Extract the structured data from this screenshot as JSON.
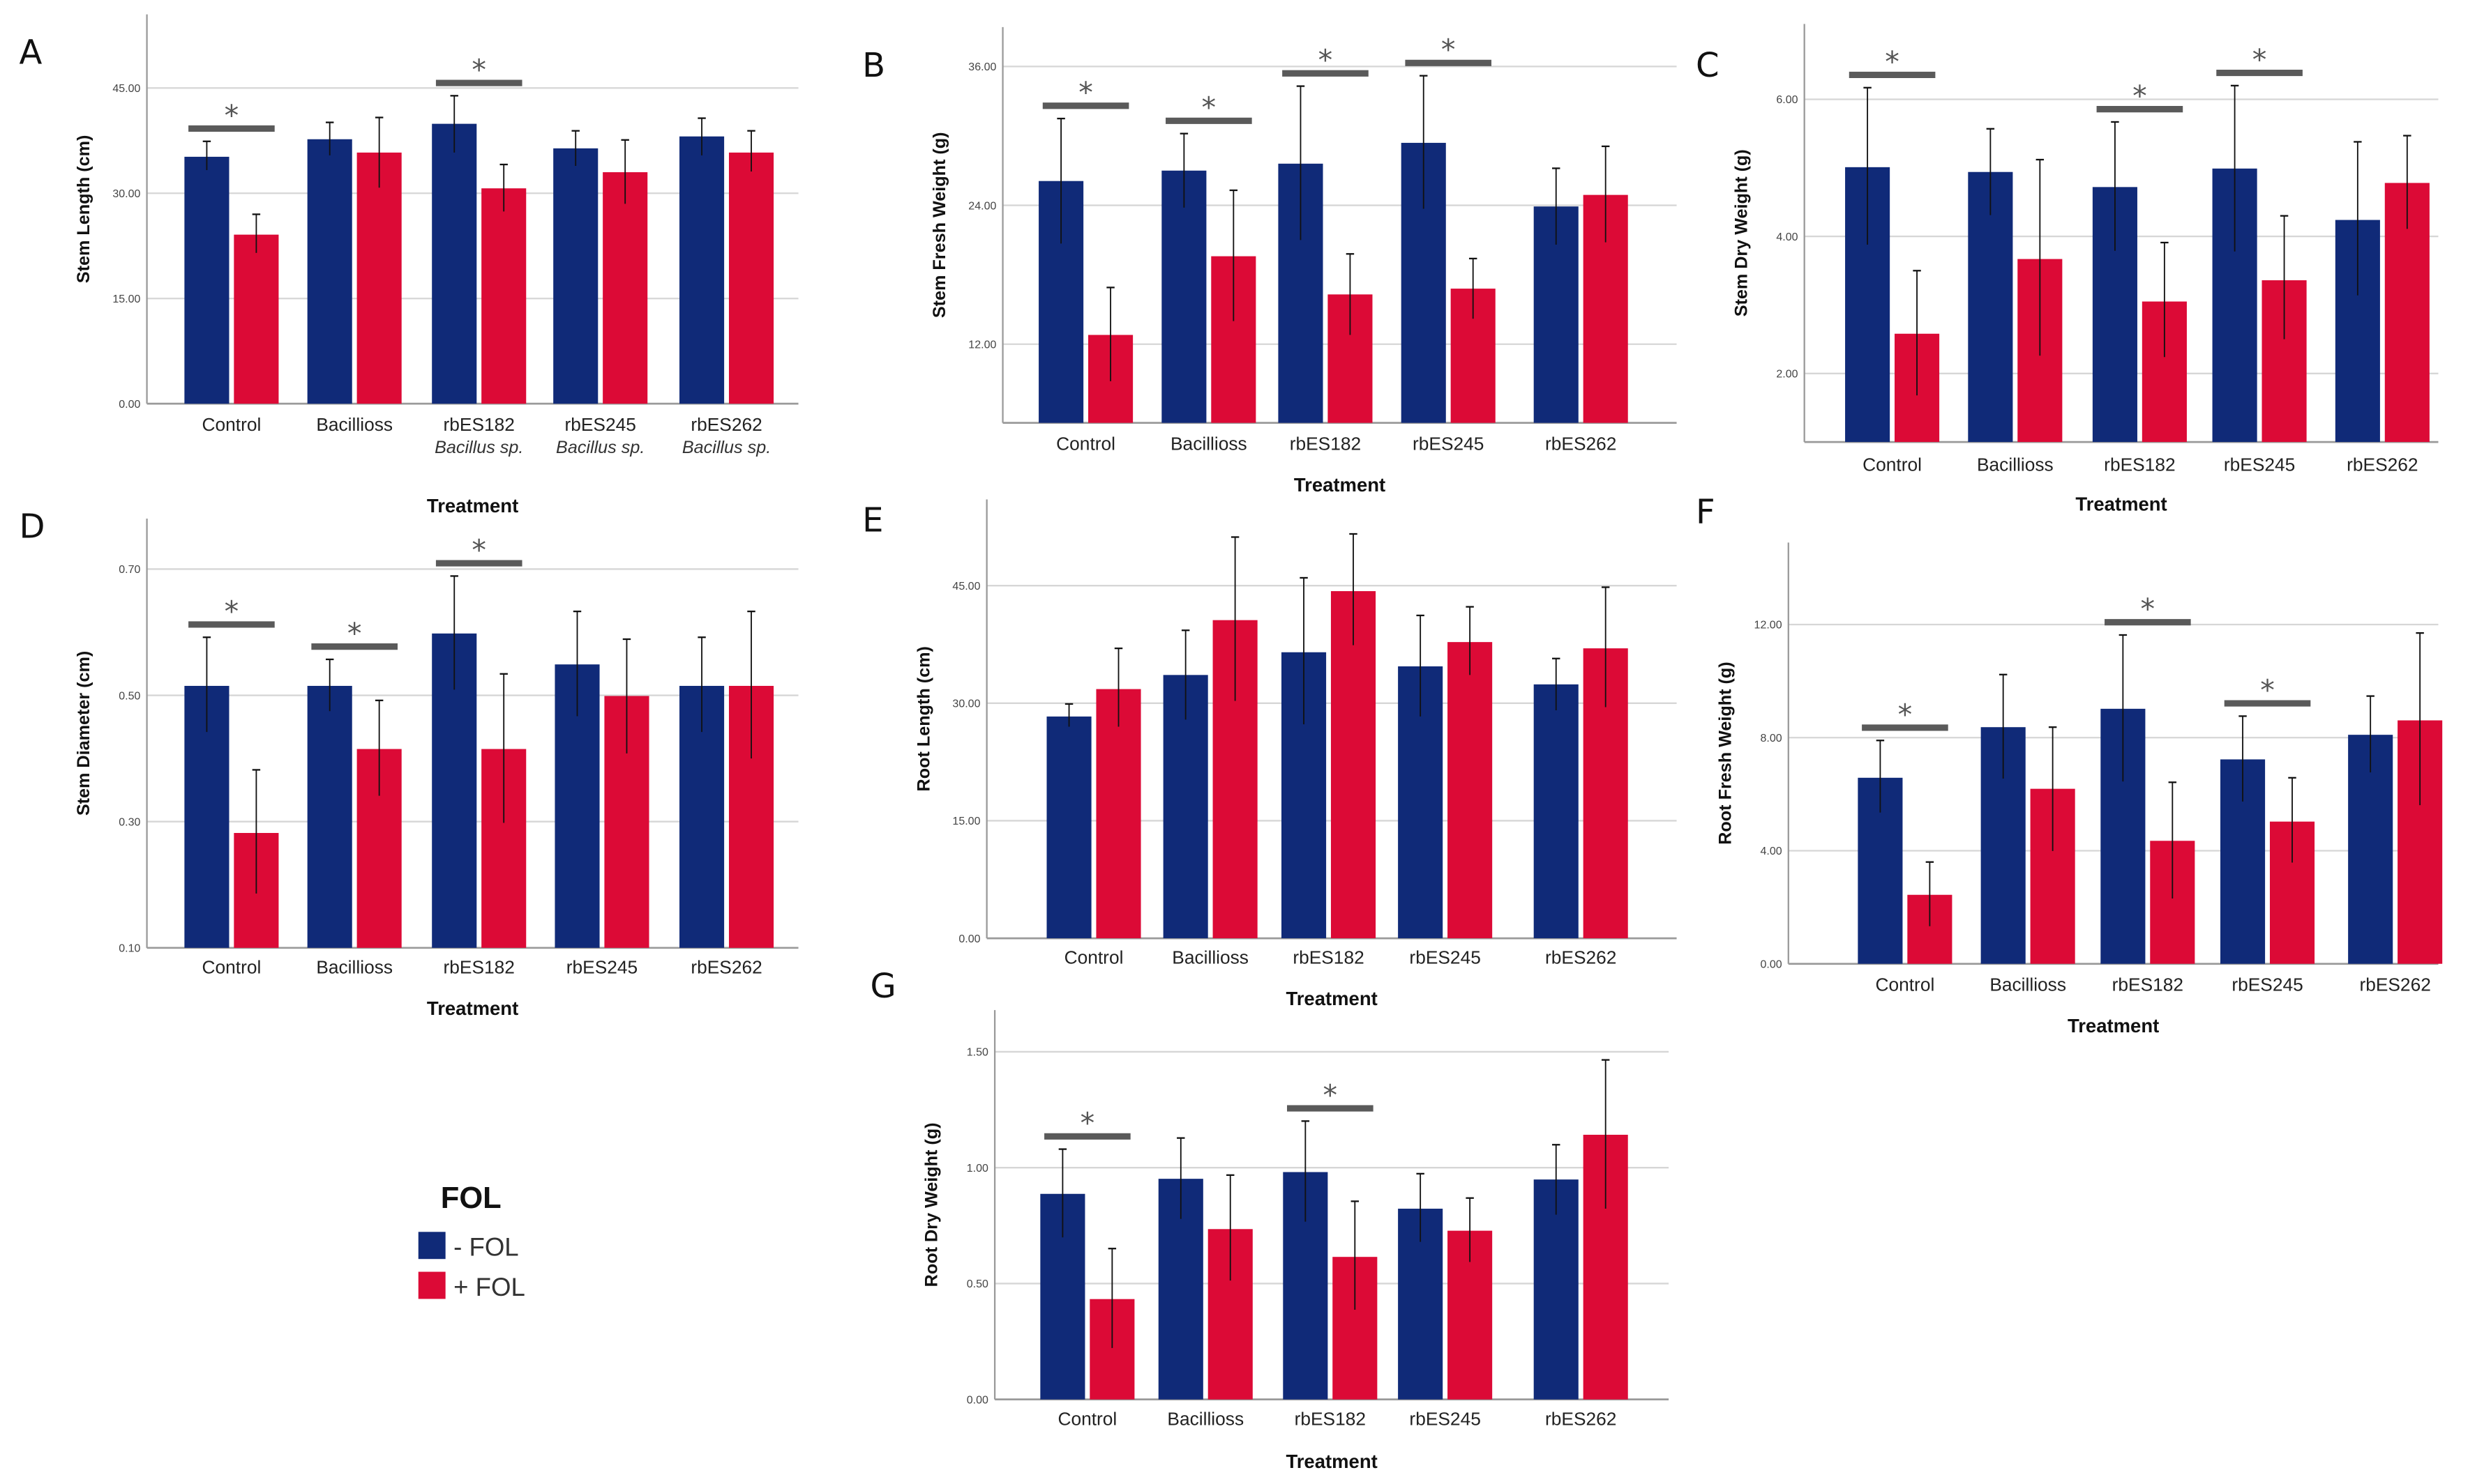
{
  "colors": {
    "minus_fol": "#102a78",
    "plus_fol": "#dc0a36",
    "grid": "#d6d6d6",
    "axis": "#9a9a9a",
    "sig_bar": "#5a5a5a"
  },
  "legend": {
    "title": "FOL",
    "items": [
      {
        "label": "- FOL",
        "series": "minus_fol"
      },
      {
        "label": "+ FOL",
        "series": "plus_fol"
      }
    ]
  },
  "chart_data": [
    {
      "type": "bar",
      "panel": "A",
      "ylabel": "Stem Length (cm)",
      "xlabel": "Treatment",
      "categories": [
        "Control",
        "Bacillioss",
        "rbES182",
        "rbES245",
        "rbES262"
      ],
      "category_sublabels": [
        "",
        "",
        "Bacillus sp.",
        "Bacillus sp.",
        "Bacillus sp."
      ],
      "yticks": [
        0,
        15,
        30,
        45
      ],
      "ytick_labels": [
        "0.00",
        "15.00",
        "30.00",
        "45.00"
      ],
      "ylim": [
        0,
        55.5
      ],
      "grid": true,
      "series": [
        {
          "name": "- FOL",
          "values": [
            35.2,
            37.7,
            39.9,
            36.4,
            38.1
          ],
          "err_low": [
            33.3,
            35.4,
            35.8,
            33.9,
            35.4
          ],
          "err_high": [
            37.4,
            40.1,
            43.9,
            38.9,
            40.7
          ]
        },
        {
          "name": "+ FOL",
          "values": [
            24.1,
            35.8,
            30.7,
            33.0,
            35.8
          ],
          "err_low": [
            21.5,
            30.8,
            27.4,
            28.5,
            33.1
          ],
          "err_high": [
            27.0,
            40.8,
            34.1,
            37.6,
            38.9
          ]
        }
      ],
      "significant": [
        "Control",
        "rbES182"
      ],
      "annotation": "*"
    },
    {
      "type": "bar",
      "panel": "B",
      "ylabel": "Stem Fresh Weight (g)",
      "xlabel": "Treatment",
      "categories": [
        "Control",
        "Bacillioss",
        "rbES182",
        "rbES245",
        "rbES262"
      ],
      "yticks": [
        12,
        24,
        36
      ],
      "ytick_labels": [
        "12.00",
        "24.00",
        "36.00"
      ],
      "ylim": [
        5.2,
        39.4
      ],
      "grid": true,
      "series": [
        {
          "name": "- FOL",
          "values": [
            26.1,
            27.0,
            27.6,
            29.4,
            23.9
          ],
          "err_low": [
            20.7,
            23.8,
            21.0,
            23.7,
            20.6
          ],
          "err_high": [
            31.5,
            30.2,
            34.3,
            35.2,
            27.2
          ]
        },
        {
          "name": "+ FOL",
          "values": [
            12.8,
            19.6,
            16.3,
            16.8,
            24.9
          ],
          "err_low": [
            8.8,
            14.0,
            12.8,
            14.2,
            20.8
          ],
          "err_high": [
            16.9,
            25.3,
            19.8,
            19.4,
            29.1
          ]
        }
      ],
      "significant": [
        "Control",
        "Bacillioss",
        "rbES182",
        "rbES245"
      ],
      "annotation": "*"
    },
    {
      "type": "bar",
      "panel": "C",
      "ylabel": "Stem Dry Weight (g)",
      "xlabel": "Treatment",
      "categories": [
        "Control",
        "Bacillioss",
        "rbES182",
        "rbES245",
        "rbES262"
      ],
      "yticks": [
        2,
        4,
        6
      ],
      "ytick_labels": [
        "2.00",
        "4.00",
        "6.00"
      ],
      "ylim": [
        1.0,
        7.1
      ],
      "grid": true,
      "series": [
        {
          "name": "- FOL",
          "values": [
            5.01,
            4.94,
            4.72,
            4.99,
            4.24
          ],
          "err_low": [
            3.88,
            4.31,
            3.79,
            3.78,
            3.14
          ],
          "err_high": [
            6.17,
            5.57,
            5.67,
            6.2,
            5.38
          ]
        },
        {
          "name": "+ FOL",
          "values": [
            2.58,
            3.67,
            3.05,
            3.36,
            4.78
          ],
          "err_low": [
            1.68,
            2.26,
            2.24,
            2.5,
            4.11
          ],
          "err_high": [
            3.5,
            5.12,
            3.91,
            4.3,
            5.47
          ]
        }
      ],
      "significant": [
        "Control",
        "rbES182",
        "rbES245"
      ],
      "annotation": "*"
    },
    {
      "type": "bar",
      "panel": "D",
      "ylabel": "Stem Diameter (cm)",
      "xlabel": "Treatment",
      "categories": [
        "Control",
        "Bacillioss",
        "rbES182",
        "rbES245",
        "rbES262"
      ],
      "yticks": [
        0.1,
        0.3,
        0.5,
        0.7
      ],
      "ytick_labels": [
        "0.10",
        "0.30",
        "0.50",
        "0.70"
      ],
      "ylim": [
        0.1,
        0.78
      ],
      "grid": true,
      "series": [
        {
          "name": "- FOL",
          "values": [
            0.515,
            0.515,
            0.598,
            0.549,
            0.515
          ],
          "err_low": [
            0.442,
            0.475,
            0.509,
            0.467,
            0.442
          ],
          "err_high": [
            0.592,
            0.557,
            0.689,
            0.633,
            0.592
          ]
        },
        {
          "name": "+ FOL",
          "values": [
            0.282,
            0.415,
            0.415,
            0.499,
            0.515
          ],
          "err_low": [
            0.186,
            0.341,
            0.298,
            0.408,
            0.4
          ],
          "err_high": [
            0.382,
            0.492,
            0.534,
            0.589,
            0.633
          ]
        }
      ],
      "significant": [
        "Control",
        "Bacillioss",
        "rbES182"
      ],
      "annotation": "*"
    },
    {
      "type": "bar",
      "panel": "E",
      "ylabel": "Root Length (cm)",
      "xlabel": "Treatment",
      "categories": [
        "Control",
        "Bacillioss",
        "rbES182",
        "rbES245",
        "rbES262"
      ],
      "yticks": [
        0,
        15,
        30,
        45
      ],
      "ytick_labels": [
        "0.00",
        "15.00",
        "30.00",
        "45.00"
      ],
      "ylim": [
        0,
        56
      ],
      "grid": true,
      "series": [
        {
          "name": "- FOL",
          "values": [
            28.3,
            33.6,
            36.5,
            34.7,
            32.4
          ],
          "err_low": [
            27.0,
            27.9,
            27.3,
            28.3,
            29.1
          ],
          "err_high": [
            29.9,
            39.3,
            46.0,
            41.2,
            35.7
          ]
        },
        {
          "name": "+ FOL",
          "values": [
            31.8,
            40.6,
            44.3,
            37.8,
            37.0
          ],
          "err_low": [
            27.0,
            30.3,
            37.4,
            33.6,
            29.5
          ],
          "err_high": [
            37.0,
            51.2,
            51.6,
            42.3,
            44.8
          ]
        }
      ],
      "significant": [],
      "annotation": "*"
    },
    {
      "type": "bar",
      "panel": "F",
      "ylabel": "Root Fresh Weight (g)",
      "xlabel": "Treatment",
      "categories": [
        "Control",
        "Bacillioss",
        "rbES182",
        "rbES245",
        "rbES262"
      ],
      "yticks": [
        0,
        4,
        8,
        12
      ],
      "ytick_labels": [
        "0.00",
        "4.00",
        "8.00",
        "12.00"
      ],
      "ylim": [
        0,
        14.9
      ],
      "grid": true,
      "series": [
        {
          "name": "- FOL",
          "values": [
            6.58,
            8.37,
            9.02,
            7.23,
            8.1
          ],
          "err_low": [
            5.35,
            6.55,
            6.45,
            5.74,
            6.77
          ],
          "err_high": [
            7.9,
            10.23,
            11.63,
            8.76,
            9.47
          ]
        },
        {
          "name": "+ FOL",
          "values": [
            2.44,
            6.19,
            4.35,
            5.03,
            8.61
          ],
          "err_low": [
            1.33,
            3.99,
            2.31,
            3.58,
            5.61
          ],
          "err_high": [
            3.6,
            8.37,
            6.42,
            6.58,
            11.7
          ]
        }
      ],
      "significant": [
        "Control",
        "rbES182",
        "rbES245"
      ],
      "annotation": "*"
    },
    {
      "type": "bar",
      "panel": "G",
      "ylabel": "Root Dry Weight (g)",
      "xlabel": "Treatment",
      "categories": [
        "Control",
        "Bacillioss",
        "rbES182",
        "rbES245",
        "rbES262"
      ],
      "yticks": [
        0,
        0.5,
        1.0,
        1.5
      ],
      "ytick_labels": [
        "0.00",
        "0.50",
        "1.00",
        "1.50"
      ],
      "ylim": [
        0,
        1.68
      ],
      "grid": true,
      "series": [
        {
          "name": "- FOL",
          "values": [
            0.887,
            0.952,
            0.981,
            0.823,
            0.949
          ],
          "err_low": [
            0.699,
            0.779,
            0.767,
            0.68,
            0.797
          ],
          "err_high": [
            1.08,
            1.128,
            1.201,
            0.974,
            1.099
          ]
        },
        {
          "name": "+ FOL",
          "values": [
            0.433,
            0.735,
            0.615,
            0.728,
            1.142
          ],
          "err_low": [
            0.222,
            0.513,
            0.387,
            0.593,
            0.823
          ],
          "err_high": [
            0.651,
            0.968,
            0.855,
            0.869,
            1.465
          ]
        }
      ],
      "significant": [
        "Control",
        "rbES182"
      ],
      "annotation": "*"
    }
  ]
}
